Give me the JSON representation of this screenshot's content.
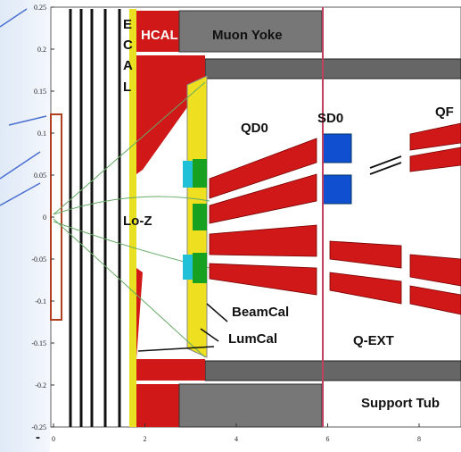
{
  "axes": {
    "y_ticks": [
      "0.25",
      "0.2",
      "0.15",
      "0.1",
      "0.05",
      "0",
      "-0.05",
      "-0.1",
      "-0.15",
      "-0.2",
      "-0.25"
    ],
    "x_ticks": [
      "0",
      "2",
      "4",
      "6",
      "8"
    ]
  },
  "labels": {
    "ecal": [
      "E",
      "C",
      "A",
      "L"
    ],
    "hcal": "HCAL",
    "muon_yoke": "Muon Yoke",
    "qd0": "QD0",
    "sd0": "SD0",
    "qf": "QF",
    "lo_z": "Lo-Z",
    "beamcal": "BeamCal",
    "lumcal": "LumCal",
    "q_ext": "Q-EXT",
    "support_tube": "Support Tub",
    "corner_mark": "-"
  }
}
